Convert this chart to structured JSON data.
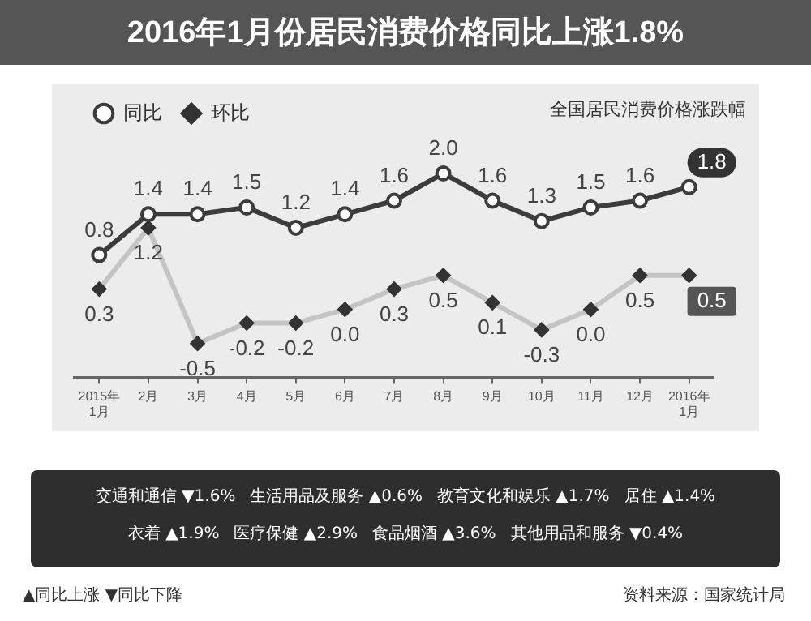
{
  "chart_data": {
    "type": "line",
    "title": "2016年1月份居民消费价格同比上涨1.8%",
    "subtitle": "全国居民消费价格涨跌幅",
    "categories": [
      "2015年\n1月",
      "2月",
      "3月",
      "4月",
      "5月",
      "6月",
      "7月",
      "8月",
      "9月",
      "10月",
      "11月",
      "12月",
      "2016年\n1月"
    ],
    "series": [
      {
        "name": "同比",
        "color": "#3c3c3c",
        "marker": "circle",
        "values": [
          0.8,
          1.4,
          1.4,
          1.5,
          1.2,
          1.4,
          1.6,
          2.0,
          1.6,
          1.3,
          1.5,
          1.6,
          1.8
        ],
        "value_labels": [
          "0.8",
          "1.4",
          "1.4",
          "1.5",
          "1.2",
          "1.4",
          "1.6",
          "2.0",
          "1.6",
          "1.3",
          "1.5",
          "1.6",
          "1.8"
        ]
      },
      {
        "name": "环比",
        "color": "#c4c4c4",
        "marker": "diamond",
        "values": [
          0.3,
          1.2,
          -0.5,
          -0.2,
          -0.2,
          0.0,
          0.3,
          0.5,
          0.1,
          -0.3,
          0.0,
          0.5,
          0.5
        ],
        "value_labels": [
          "0.3",
          "1.2",
          "-0.5",
          "-0.2",
          "-0.2",
          "0.0",
          "0.3",
          "0.5",
          "0.1",
          "-0.3",
          "0.0",
          "0.5",
          "0.5"
        ]
      }
    ],
    "legend": "top left",
    "tick_labels": "x",
    "line_style": "solid",
    "annotations": [
      "交通和通信 ▼1.6%",
      "生活用品及服务 ▲0.6%",
      "教育文化和娱乐 ▲1.7%",
      "居住 ▲1.4%",
      "衣着 ▲1.9%",
      "医疗保健 ▲2.9%",
      "食品烟酒 ▲3.6%",
      "其他用品和服务 ▼0.4%",
      "▲同比上涨 ▼同比下降",
      "资料来源：国家统计局"
    ]
  }
}
